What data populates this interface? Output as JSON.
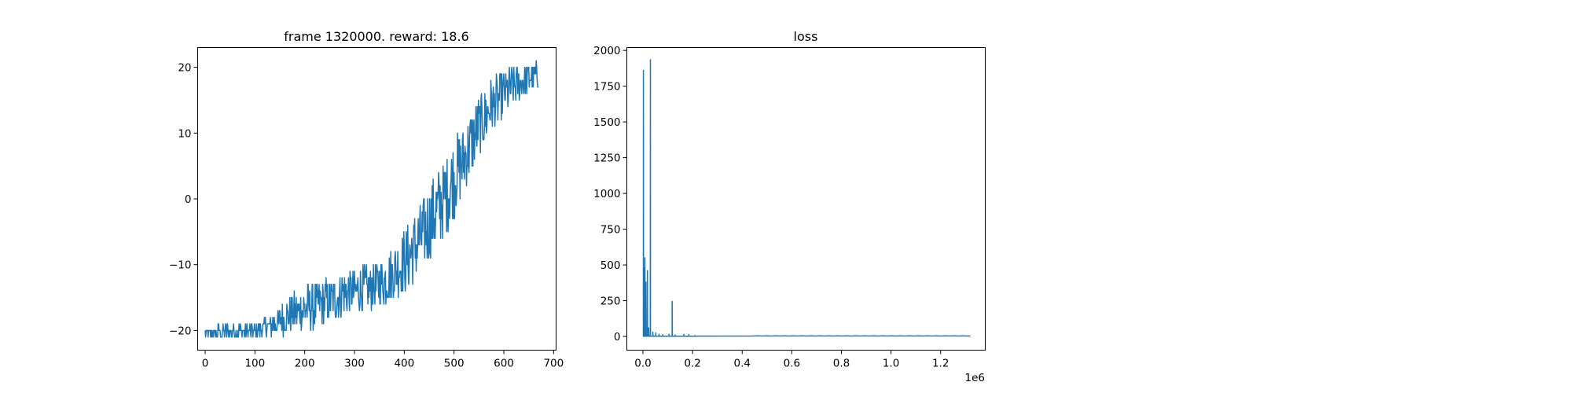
{
  "chart_data": [
    {
      "type": "line",
      "title": "frame 1320000. reward: 18.6",
      "xlabel": "",
      "ylabel": "",
      "xlim": [
        -15,
        705
      ],
      "ylim": [
        -23,
        23
      ],
      "xticks": [
        0,
        100,
        200,
        300,
        400,
        500,
        600,
        700
      ],
      "xtick_labels": [
        "0",
        "100",
        "200",
        "300",
        "400",
        "500",
        "600",
        "700"
      ],
      "yticks": [
        -20,
        -10,
        0,
        10,
        20
      ],
      "ytick_labels": [
        "−20",
        "−10",
        "0",
        "10",
        "20"
      ],
      "grid": false,
      "color": "#1f77b4",
      "series": [
        {
          "x": [
            0,
            25,
            50,
            75,
            100,
            125,
            150,
            175,
            200,
            225,
            250,
            275,
            300,
            325,
            350,
            375,
            400,
            425,
            450,
            475,
            500,
            525,
            550,
            575,
            600,
            625,
            650,
            670
          ],
          "y": [
            -20.5,
            -20.3,
            -20.2,
            -20.2,
            -20,
            -19.6,
            -18.5,
            -17.5,
            -16.5,
            -16.2,
            -15.5,
            -14.5,
            -14,
            -13.8,
            -13,
            -11.5,
            -9.5,
            -7,
            -4,
            -0.5,
            3,
            7,
            11,
            14,
            16,
            17.5,
            18.3,
            18.6
          ],
          "amplitude": [
            0.8,
            0.9,
            1.1,
            1.0,
            1.0,
            1.5,
            2.0,
            2.5,
            3.0,
            3.0,
            3.0,
            3.0,
            3.0,
            3.0,
            3.0,
            3.5,
            4.0,
            4.5,
            5.0,
            5.0,
            5.0,
            4.5,
            4.0,
            3.5,
            3.0,
            2.5,
            2.0,
            2.0
          ]
        }
      ]
    },
    {
      "type": "line",
      "title": "loss",
      "xlabel": "",
      "ylabel": "",
      "xlim": [
        -65000,
        1380000
      ],
      "ylim": [
        -96,
        2020
      ],
      "xticks": [
        0,
        200000,
        400000,
        600000,
        800000,
        1000000,
        1200000
      ],
      "xtick_labels": [
        "0.0",
        "0.2",
        "0.4",
        "0.6",
        "0.8",
        "1.0",
        "1.2"
      ],
      "x_offset_label": "1e6",
      "yticks": [
        0,
        250,
        500,
        750,
        1000,
        1250,
        1500,
        1750,
        2000
      ],
      "ytick_labels": [
        "0",
        "250",
        "500",
        "750",
        "1000",
        "1250",
        "1500",
        "1750",
        "2000"
      ],
      "grid": false,
      "color": "#1f77b4",
      "series": [
        {
          "x_end": 1320000,
          "baseline": 2,
          "spikes": [
            {
              "x": 2000,
              "y": 1860
            },
            {
              "x": 5000,
              "y": 480
            },
            {
              "x": 8000,
              "y": 550
            },
            {
              "x": 12000,
              "y": 380
            },
            {
              "x": 18000,
              "y": 460
            },
            {
              "x": 23000,
              "y": 60
            },
            {
              "x": 30000,
              "y": 1935
            },
            {
              "x": 40000,
              "y": 30
            },
            {
              "x": 52000,
              "y": 25
            },
            {
              "x": 65000,
              "y": 15
            },
            {
              "x": 80000,
              "y": 12
            },
            {
              "x": 105000,
              "y": 15
            },
            {
              "x": 118000,
              "y": 245
            },
            {
              "x": 130000,
              "y": 10
            },
            {
              "x": 165000,
              "y": 15
            },
            {
              "x": 185000,
              "y": 12
            },
            {
              "x": 210000,
              "y": 6
            }
          ]
        }
      ]
    }
  ]
}
